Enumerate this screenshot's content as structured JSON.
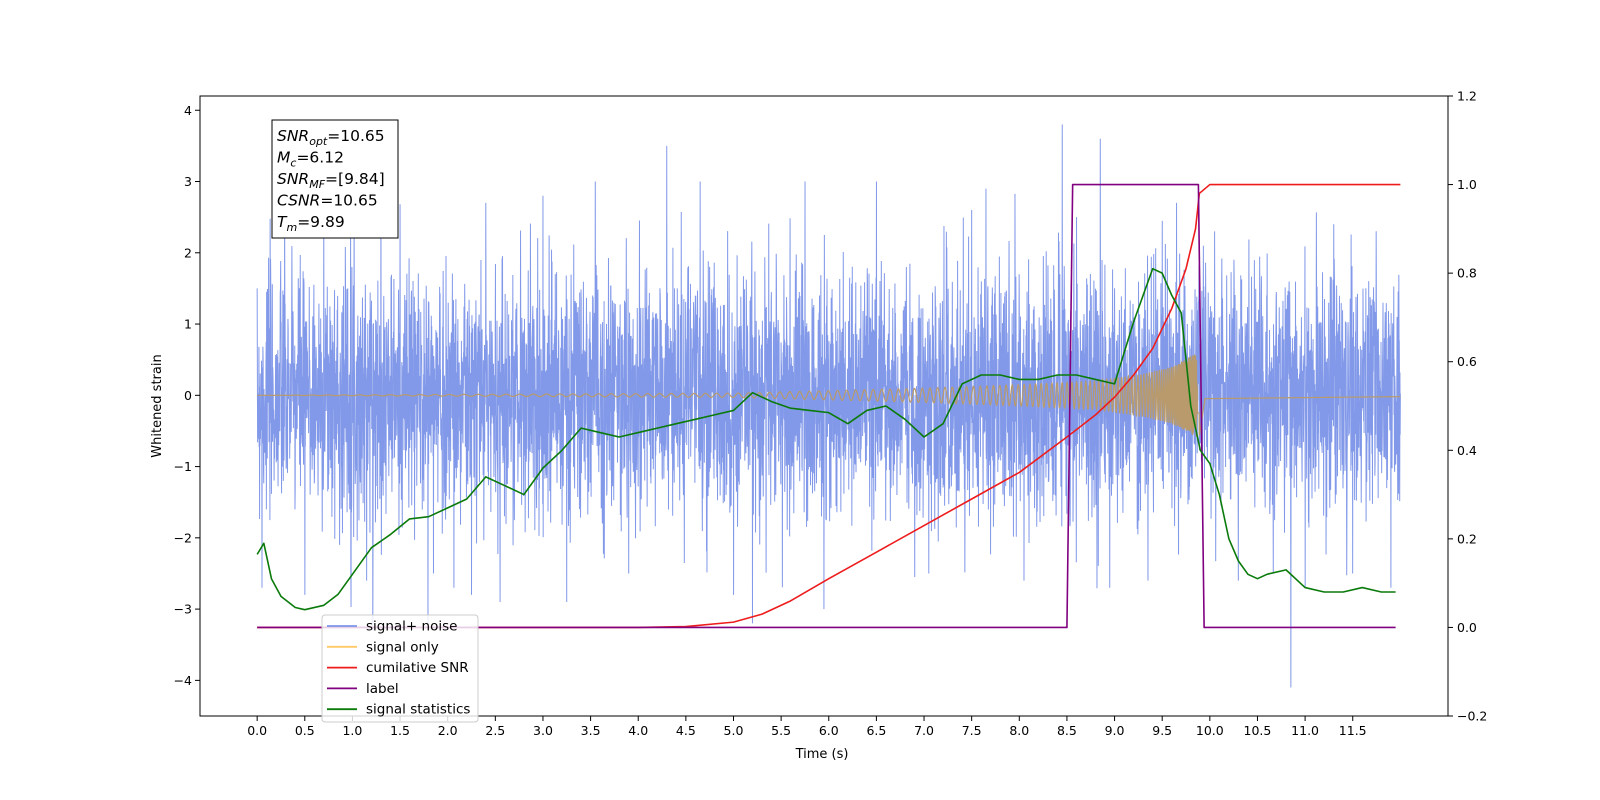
{
  "chart_data": {
    "type": "line",
    "xlabel": "Time (s)",
    "ylabel_left": "Whitened strain",
    "xlim": [
      -0.6,
      12.5
    ],
    "ylim_left": [
      -4.5,
      4.2
    ],
    "ylim_right": [
      -0.2,
      1.2
    ],
    "x_ticks": [
      0.0,
      0.5,
      1.0,
      1.5,
      2.0,
      2.5,
      3.0,
      3.5,
      4.0,
      4.5,
      5.0,
      5.5,
      6.0,
      6.5,
      7.0,
      7.5,
      8.0,
      8.5,
      9.0,
      9.5,
      10.0,
      10.5,
      11.0,
      11.5
    ],
    "x_tick_labels": [
      "0.0",
      "0.5",
      "1.0",
      "1.5",
      "2.0",
      "2.5",
      "3.0",
      "3.5",
      "4.0",
      "4.5",
      "5.0",
      "5.5",
      "6.0",
      "6.5",
      "7.0",
      "7.5",
      "8.0",
      "8.5",
      "9.0",
      "9.5",
      "10.0",
      "10.5",
      "11.0",
      "11.5"
    ],
    "y_left_ticks": [
      -4,
      -3,
      -2,
      -1,
      0,
      1,
      2,
      3,
      4
    ],
    "y_left_tick_labels": [
      "−4",
      "−3",
      "−2",
      "−1",
      "0",
      "1",
      "2",
      "3",
      "4"
    ],
    "y_right_ticks": [
      -0.2,
      0.0,
      0.2,
      0.4,
      0.6,
      0.8,
      1.0,
      1.2
    ],
    "y_right_tick_labels": [
      "−0.2",
      "0.0",
      "0.2",
      "0.4",
      "0.6",
      "0.8",
      "1.0",
      "1.2"
    ],
    "grid": false,
    "legend_position": "bottom-left",
    "legend": [
      {
        "label": "signal+ noise",
        "color": "#7b94e8"
      },
      {
        "label": "signal only",
        "color": "#ffc966"
      },
      {
        "label": "cumilative SNR",
        "color": "#ee1c1c"
      },
      {
        "label": "label",
        "color": "#800080"
      },
      {
        "label": "signal statistics",
        "color": "#0a7a0a"
      }
    ],
    "annotation": [
      {
        "base": "SNR",
        "sub": "opt",
        "value": "=10.65"
      },
      {
        "base": "M",
        "sub": "c",
        "value": "=6.12"
      },
      {
        "base": "SNR",
        "sub": "MF",
        "value": "=[9.84]"
      },
      {
        "base": "CSNR",
        "sub": "",
        "value": "=10.65"
      },
      {
        "base": "T",
        "sub": "m",
        "value": "=9.89"
      }
    ],
    "series": [
      {
        "name": "signal+ noise",
        "axis": "left",
        "style": "dense noise band",
        "x_range": [
          0.0,
          12.0
        ],
        "color": "#7b94e8",
        "spikes": [
          [
            0.0,
            1.5
          ],
          [
            0.05,
            -2.7
          ],
          [
            0.5,
            -2.8
          ],
          [
            0.7,
            2.9
          ],
          [
            0.98,
            2.4
          ],
          [
            1.15,
            -2.6
          ],
          [
            1.3,
            3.0
          ],
          [
            1.85,
            -2.5
          ],
          [
            2.25,
            -2.8
          ],
          [
            2.4,
            2.7
          ],
          [
            2.55,
            -2.9
          ],
          [
            3.0,
            2.8
          ],
          [
            3.25,
            -2.9
          ],
          [
            3.55,
            3.0
          ],
          [
            3.9,
            -2.5
          ],
          [
            4.3,
            3.5
          ],
          [
            4.65,
            3.0
          ],
          [
            5.0,
            -2.8
          ],
          [
            5.2,
            -3.2
          ],
          [
            5.75,
            3.0
          ],
          [
            5.95,
            -3.0
          ],
          [
            6.5,
            3.0
          ],
          [
            7.05,
            -2.5
          ],
          [
            7.5,
            2.6
          ],
          [
            7.65,
            2.9
          ],
          [
            8.05,
            -2.6
          ],
          [
            8.45,
            3.8
          ],
          [
            8.6,
            2.5
          ],
          [
            8.85,
            3.6
          ],
          [
            8.95,
            -2.7
          ],
          [
            9.35,
            -2.6
          ],
          [
            9.65,
            2.7
          ],
          [
            10.05,
            2.3
          ],
          [
            10.3,
            -2.6
          ],
          [
            10.85,
            -4.1
          ],
          [
            11.0,
            -2.7
          ],
          [
            11.3,
            2.4
          ],
          [
            11.5,
            -2.5
          ],
          [
            11.9,
            -2.7
          ]
        ]
      },
      {
        "name": "signal only",
        "axis": "left",
        "style": "chirp",
        "x_range": [
          0.0,
          12.0
        ],
        "merger_time": 9.89,
        "envelope": [
          [
            0.0,
            0.0
          ],
          [
            5.0,
            0.03
          ],
          [
            7.0,
            0.1
          ],
          [
            8.0,
            0.15
          ],
          [
            8.8,
            0.2
          ],
          [
            9.3,
            0.3
          ],
          [
            9.6,
            0.4
          ],
          [
            9.8,
            0.55
          ],
          [
            9.89,
            0.6
          ],
          [
            9.95,
            0.05
          ],
          [
            12.0,
            0.02
          ]
        ],
        "color": "#b89a6c"
      },
      {
        "name": "cumilative SNR",
        "axis": "right",
        "color": "#ee1c1c",
        "x": [
          0.0,
          4.0,
          4.5,
          5.0,
          5.3,
          5.6,
          6.0,
          6.5,
          7.0,
          7.5,
          8.0,
          8.5,
          8.8,
          9.0,
          9.2,
          9.4,
          9.6,
          9.75,
          9.85,
          9.89,
          10.0,
          12.0
        ],
        "y": [
          0.0,
          0.0,
          0.002,
          0.012,
          0.03,
          0.06,
          0.11,
          0.17,
          0.23,
          0.29,
          0.35,
          0.43,
          0.48,
          0.52,
          0.57,
          0.63,
          0.72,
          0.81,
          0.9,
          0.98,
          1.0,
          1.0
        ]
      },
      {
        "name": "label",
        "axis": "right",
        "color": "#800080",
        "x": [
          0.0,
          8.5,
          8.56,
          9.88,
          9.94,
          11.95
        ],
        "y": [
          0.0,
          0.0,
          1.0,
          1.0,
          0.0,
          0.0
        ]
      },
      {
        "name": "signal statistics",
        "axis": "right",
        "color": "#0a7a0a",
        "x": [
          0.0,
          0.07,
          0.15,
          0.25,
          0.4,
          0.5,
          0.7,
          0.85,
          1.0,
          1.2,
          1.4,
          1.6,
          1.8,
          2.0,
          2.2,
          2.4,
          2.6,
          2.8,
          3.0,
          3.2,
          3.4,
          3.6,
          3.8,
          4.0,
          4.2,
          4.4,
          4.6,
          4.8,
          5.0,
          5.2,
          5.4,
          5.6,
          5.8,
          6.0,
          6.2,
          6.4,
          6.6,
          6.8,
          7.0,
          7.2,
          7.4,
          7.6,
          7.8,
          8.0,
          8.2,
          8.4,
          8.6,
          8.8,
          9.0,
          9.2,
          9.3,
          9.4,
          9.5,
          9.6,
          9.7,
          9.8,
          9.9,
          10.0,
          10.1,
          10.2,
          10.3,
          10.4,
          10.5,
          10.6,
          10.8,
          11.0,
          11.2,
          11.4,
          11.6,
          11.8,
          11.95
        ],
        "y": [
          0.165,
          0.19,
          0.11,
          0.07,
          0.045,
          0.04,
          0.05,
          0.075,
          0.12,
          0.18,
          0.21,
          0.245,
          0.25,
          0.27,
          0.29,
          0.34,
          0.32,
          0.3,
          0.36,
          0.4,
          0.45,
          0.44,
          0.43,
          0.44,
          0.45,
          0.46,
          0.47,
          0.48,
          0.49,
          0.53,
          0.51,
          0.495,
          0.49,
          0.485,
          0.46,
          0.49,
          0.5,
          0.47,
          0.43,
          0.46,
          0.55,
          0.57,
          0.57,
          0.56,
          0.56,
          0.57,
          0.57,
          0.56,
          0.55,
          0.69,
          0.75,
          0.81,
          0.8,
          0.75,
          0.71,
          0.5,
          0.4,
          0.37,
          0.3,
          0.2,
          0.15,
          0.12,
          0.11,
          0.12,
          0.13,
          0.09,
          0.08,
          0.08,
          0.09,
          0.08,
          0.08
        ]
      }
    ]
  }
}
